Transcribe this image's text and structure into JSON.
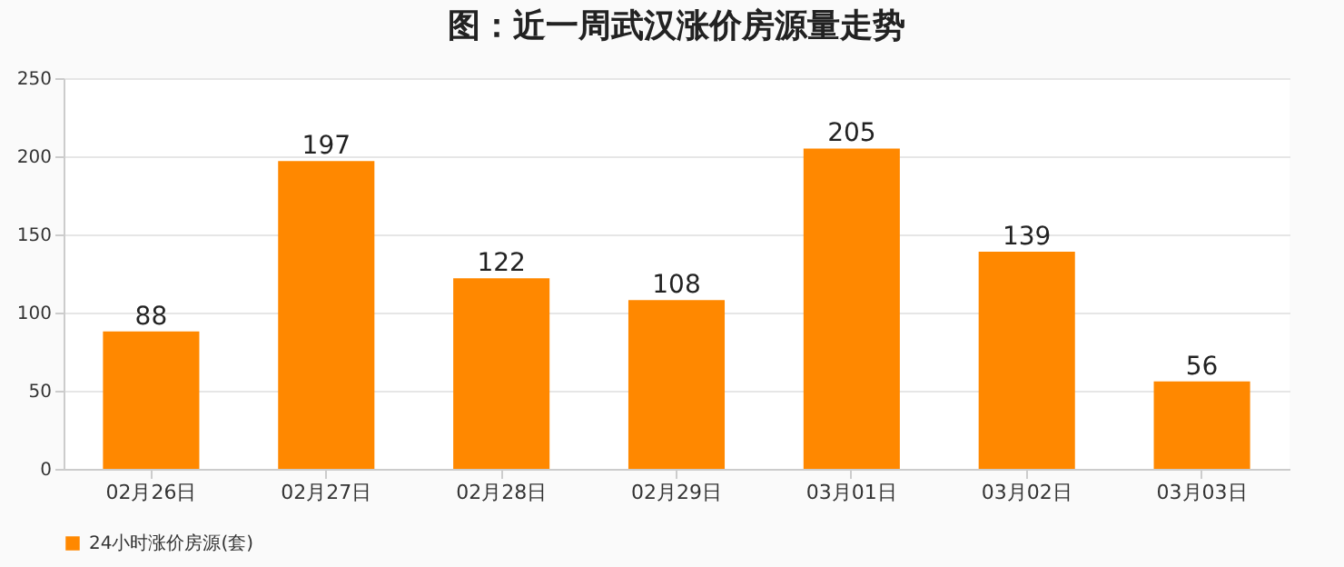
{
  "chart_data": {
    "type": "bar",
    "title": "图：近一周武汉涨价房源量走势",
    "categories": [
      "02月26日",
      "02月27日",
      "02月28日",
      "02月29日",
      "03月01日",
      "03月02日",
      "03月03日"
    ],
    "series": [
      {
        "name": "24小时涨价房源(套)",
        "color": "#ff8800",
        "values": [
          88,
          197,
          122,
          108,
          205,
          139,
          56
        ]
      }
    ],
    "ylim": [
      0,
      250
    ],
    "yticks": [
      0,
      50,
      100,
      150,
      200,
      250
    ],
    "grid": "y",
    "legend": "bottom",
    "data_labels": true
  }
}
